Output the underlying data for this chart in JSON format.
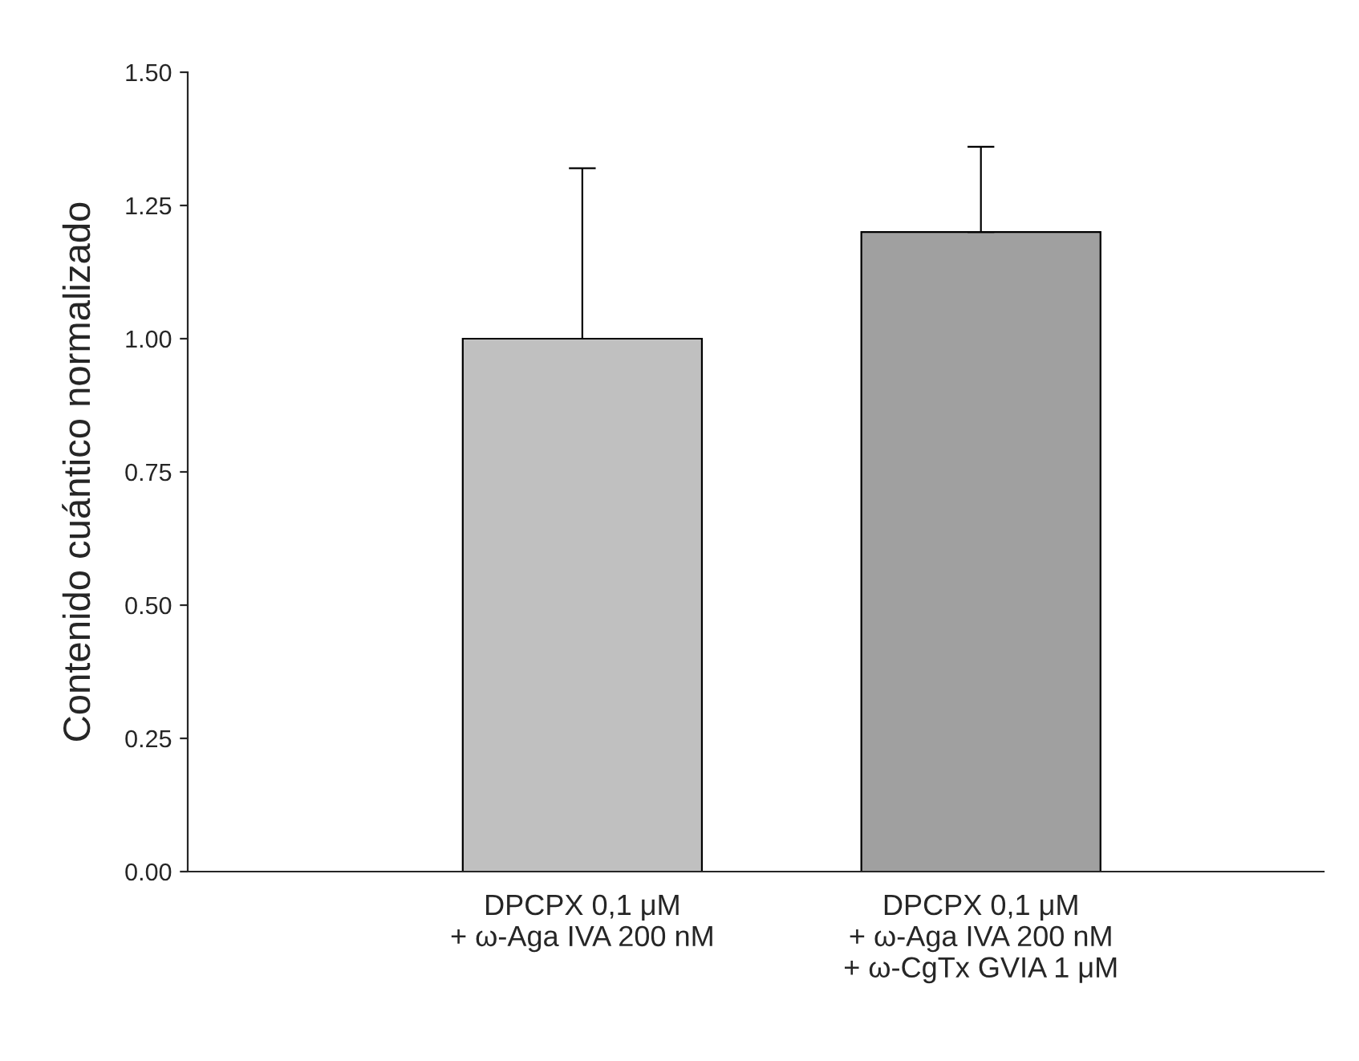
{
  "chart_data": {
    "type": "bar",
    "ylabel": "Contenido cuántico normalizado",
    "categories": [
      "DPCPX 0,1 μM\n+ ω-Aga IVA 200 nM",
      "DPCPX 0,1 μM\n+ ω-Aga IVA 200 nM\n+ ω-CgTx GVIA 1 μM"
    ],
    "values": [
      1.0,
      1.2
    ],
    "colors": [
      "#c0c0c0",
      "#a0a0a0"
    ],
    "errors": [
      [
        1.0,
        1.32
      ],
      [
        1.2,
        1.36
      ]
    ],
    "ylim": [
      0,
      1.5
    ],
    "yticks": [
      {
        "value": 0,
        "label": "0.00"
      },
      {
        "value": 0.25,
        "label": "0.25"
      },
      {
        "value": 0.5,
        "label": "0.50"
      },
      {
        "value": 0.75,
        "label": "0.75"
      },
      {
        "value": 1.0,
        "label": "1.00"
      },
      {
        "value": 1.25,
        "label": "1.25"
      },
      {
        "value": 1.5,
        "label": "1.50"
      }
    ],
    "grid": false,
    "legend": false
  }
}
